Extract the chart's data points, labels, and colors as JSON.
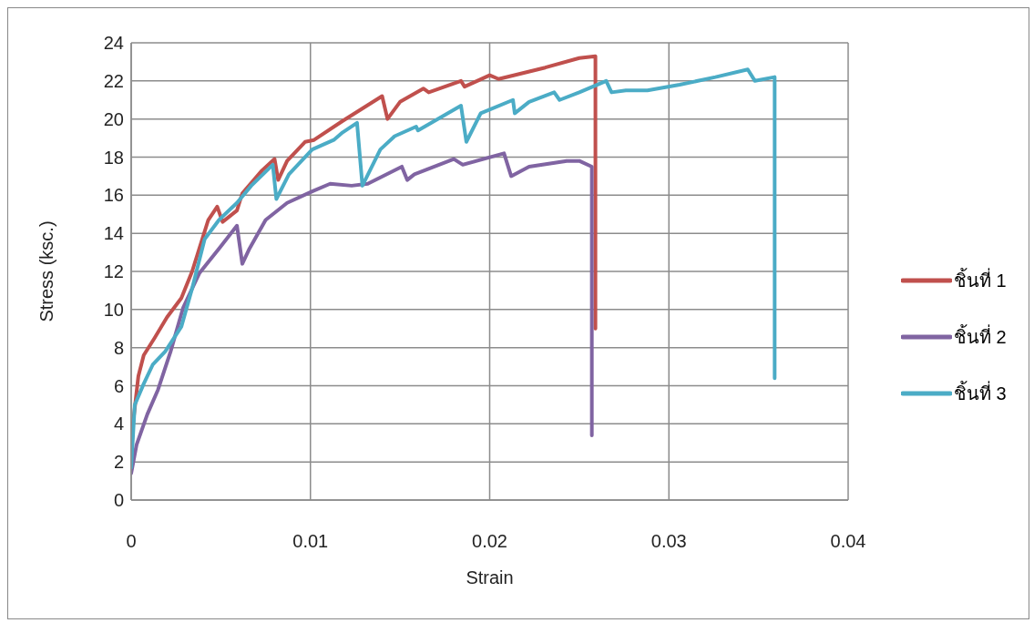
{
  "chart_data": {
    "type": "line",
    "xlabel": "Strain",
    "ylabel": "Stress (ksc.)",
    "xlim": [
      0,
      0.04
    ],
    "xticks": [
      0,
      0.01,
      0.02,
      0.03,
      0.04
    ],
    "ylim": [
      0,
      24
    ],
    "yticks": [
      0,
      2,
      4,
      6,
      8,
      10,
      12,
      14,
      16,
      18,
      20,
      22,
      24
    ],
    "grid": true,
    "legend": "right",
    "marker": "none",
    "line_style": "solid",
    "series": [
      {
        "name": "ชิ้นที่ 1",
        "color": "#c0504d",
        "x": [
          0,
          0.0001,
          0.0004,
          0.0007,
          0.0013,
          0.002,
          0.0028,
          0.0034,
          0.0043,
          0.0048,
          0.0051,
          0.0059,
          0.0062,
          0.0073,
          0.008,
          0.0082,
          0.0087,
          0.0097,
          0.0102,
          0.0118,
          0.014,
          0.0143,
          0.015,
          0.0163,
          0.0166,
          0.0175,
          0.0184,
          0.0186,
          0.02,
          0.0205,
          0.0231,
          0.025,
          0.0259,
          0.0259,
          0.0259
        ],
        "values": [
          2,
          4,
          6.5,
          7.6,
          8.5,
          9.6,
          10.6,
          12,
          14.7,
          15.4,
          14.6,
          15.2,
          16.1,
          17.3,
          17.9,
          16.8,
          17.8,
          18.8,
          18.9,
          19.9,
          21.2,
          20,
          20.9,
          21.6,
          21.4,
          21.7,
          22,
          21.7,
          22.3,
          22.1,
          22.7,
          23.2,
          23.3,
          17.6,
          9
        ]
      },
      {
        "name": "ชิ้นที่ 2",
        "color": "#8064a2",
        "x": [
          0,
          0.0003,
          0.0009,
          0.0015,
          0.0022,
          0.0029,
          0.0038,
          0.0049,
          0.0059,
          0.0062,
          0.0066,
          0.0075,
          0.0087,
          0.0101,
          0.0111,
          0.0123,
          0.0132,
          0.0151,
          0.0154,
          0.0158,
          0.018,
          0.0185,
          0.0208,
          0.0212,
          0.0222,
          0.0243,
          0.025,
          0.0257,
          0.0257
        ],
        "values": [
          1.4,
          2.9,
          4.5,
          5.8,
          7.8,
          10.1,
          11.9,
          13.2,
          14.4,
          12.4,
          13.2,
          14.7,
          15.6,
          16.2,
          16.6,
          16.5,
          16.6,
          17.5,
          16.8,
          17.1,
          17.9,
          17.6,
          18.2,
          17,
          17.5,
          17.8,
          17.8,
          17.5,
          3.4
        ]
      },
      {
        "name": "ชิ้นที่ 3",
        "color": "#4bacc6",
        "x": [
          0,
          0.0002,
          0.0007,
          0.0012,
          0.0019,
          0.0028,
          0.0034,
          0.0041,
          0.0049,
          0.0059,
          0.0067,
          0.0079,
          0.0081,
          0.0088,
          0.0101,
          0.0113,
          0.0118,
          0.0126,
          0.0129,
          0.0139,
          0.0147,
          0.0159,
          0.016,
          0.0184,
          0.0187,
          0.0195,
          0.0213,
          0.0214,
          0.0222,
          0.0236,
          0.0239,
          0.025,
          0.0265,
          0.0268,
          0.0276,
          0.0288,
          0.0306,
          0.0326,
          0.0344,
          0.0348,
          0.0359,
          0.0359
        ],
        "values": [
          1.7,
          5,
          6.1,
          7.1,
          7.8,
          9.1,
          11.1,
          13.7,
          14.7,
          15.6,
          16.5,
          17.6,
          15.8,
          17.1,
          18.4,
          18.9,
          19.3,
          19.8,
          16.5,
          18.4,
          19.1,
          19.6,
          19.4,
          20.7,
          18.8,
          20.3,
          21,
          20.3,
          20.9,
          21.4,
          21,
          21.4,
          22,
          21.4,
          21.5,
          21.5,
          21.8,
          22.2,
          22.6,
          22,
          22.2,
          6.4
        ]
      }
    ]
  }
}
